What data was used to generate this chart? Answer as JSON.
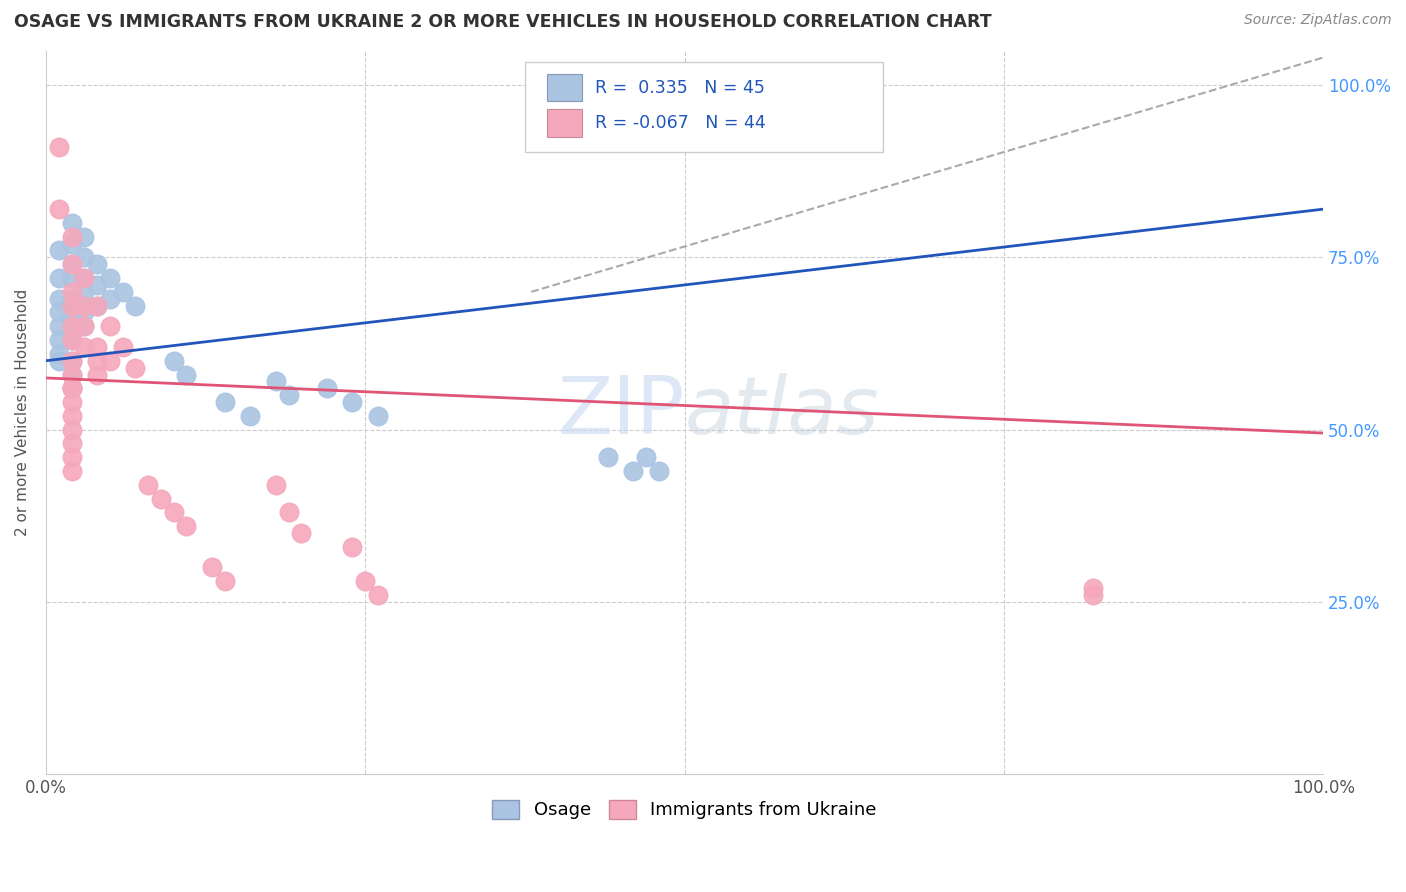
{
  "title": "OSAGE VS IMMIGRANTS FROM UKRAINE 2 OR MORE VEHICLES IN HOUSEHOLD CORRELATION CHART",
  "source": "Source: ZipAtlas.com",
  "ylabel": "2 or more Vehicles in Household",
  "osage_color": "#aac4e2",
  "ukraine_color": "#f5a8bc",
  "osage_line_color": "#2255bb",
  "ukraine_line_color": "#e05575",
  "legend_text_color": "#2255bb",
  "watermark_color": "#c8d8f0",
  "grid_color": "#cccccc",
  "right_tick_color": "#4499ff",
  "osage_scatter": [
    [
      0.01,
      0.76
    ],
    [
      0.01,
      0.72
    ],
    [
      0.01,
      0.69
    ],
    [
      0.01,
      0.67
    ],
    [
      0.01,
      0.65
    ],
    [
      0.01,
      0.63
    ],
    [
      0.01,
      0.61
    ],
    [
      0.01,
      0.6
    ],
    [
      0.02,
      0.8
    ],
    [
      0.02,
      0.77
    ],
    [
      0.02,
      0.74
    ],
    [
      0.02,
      0.72
    ],
    [
      0.02,
      0.69
    ],
    [
      0.02,
      0.67
    ],
    [
      0.02,
      0.65
    ],
    [
      0.02,
      0.63
    ],
    [
      0.02,
      0.6
    ],
    [
      0.02,
      0.58
    ],
    [
      0.02,
      0.56
    ],
    [
      0.03,
      0.78
    ],
    [
      0.03,
      0.75
    ],
    [
      0.03,
      0.72
    ],
    [
      0.03,
      0.7
    ],
    [
      0.03,
      0.67
    ],
    [
      0.03,
      0.65
    ],
    [
      0.04,
      0.74
    ],
    [
      0.04,
      0.71
    ],
    [
      0.04,
      0.68
    ],
    [
      0.05,
      0.72
    ],
    [
      0.05,
      0.69
    ],
    [
      0.06,
      0.7
    ],
    [
      0.07,
      0.68
    ],
    [
      0.1,
      0.6
    ],
    [
      0.11,
      0.58
    ],
    [
      0.14,
      0.54
    ],
    [
      0.16,
      0.52
    ],
    [
      0.18,
      0.57
    ],
    [
      0.19,
      0.55
    ],
    [
      0.22,
      0.56
    ],
    [
      0.24,
      0.54
    ],
    [
      0.26,
      0.52
    ],
    [
      0.44,
      0.46
    ],
    [
      0.46,
      0.44
    ],
    [
      0.47,
      0.46
    ],
    [
      0.48,
      0.44
    ]
  ],
  "ukraine_scatter": [
    [
      0.01,
      0.91
    ],
    [
      0.01,
      0.82
    ],
    [
      0.02,
      0.78
    ],
    [
      0.02,
      0.74
    ],
    [
      0.02,
      0.7
    ],
    [
      0.02,
      0.68
    ],
    [
      0.02,
      0.65
    ],
    [
      0.02,
      0.63
    ],
    [
      0.02,
      0.6
    ],
    [
      0.02,
      0.58
    ],
    [
      0.02,
      0.56
    ],
    [
      0.02,
      0.54
    ],
    [
      0.02,
      0.52
    ],
    [
      0.02,
      0.5
    ],
    [
      0.02,
      0.48
    ],
    [
      0.02,
      0.46
    ],
    [
      0.02,
      0.44
    ],
    [
      0.02,
      0.56
    ],
    [
      0.03,
      0.72
    ],
    [
      0.03,
      0.68
    ],
    [
      0.03,
      0.65
    ],
    [
      0.03,
      0.62
    ],
    [
      0.04,
      0.68
    ],
    [
      0.04,
      0.62
    ],
    [
      0.04,
      0.6
    ],
    [
      0.04,
      0.58
    ],
    [
      0.05,
      0.65
    ],
    [
      0.05,
      0.6
    ],
    [
      0.06,
      0.62
    ],
    [
      0.07,
      0.59
    ],
    [
      0.08,
      0.42
    ],
    [
      0.09,
      0.4
    ],
    [
      0.1,
      0.38
    ],
    [
      0.11,
      0.36
    ],
    [
      0.13,
      0.3
    ],
    [
      0.14,
      0.28
    ],
    [
      0.18,
      0.42
    ],
    [
      0.19,
      0.38
    ],
    [
      0.2,
      0.35
    ],
    [
      0.24,
      0.33
    ],
    [
      0.25,
      0.28
    ],
    [
      0.26,
      0.26
    ],
    [
      0.82,
      0.27
    ],
    [
      0.82,
      0.26
    ]
  ],
  "osage_line": [
    0.0,
    0.6,
    1.0,
    0.82
  ],
  "ukraine_line": [
    0.0,
    0.575,
    1.0,
    0.495
  ],
  "dashed_line": [
    0.38,
    0.7,
    1.0,
    1.04
  ],
  "x_min": 0.0,
  "x_max": 1.0,
  "y_min": 0.0,
  "y_max": 1.05
}
